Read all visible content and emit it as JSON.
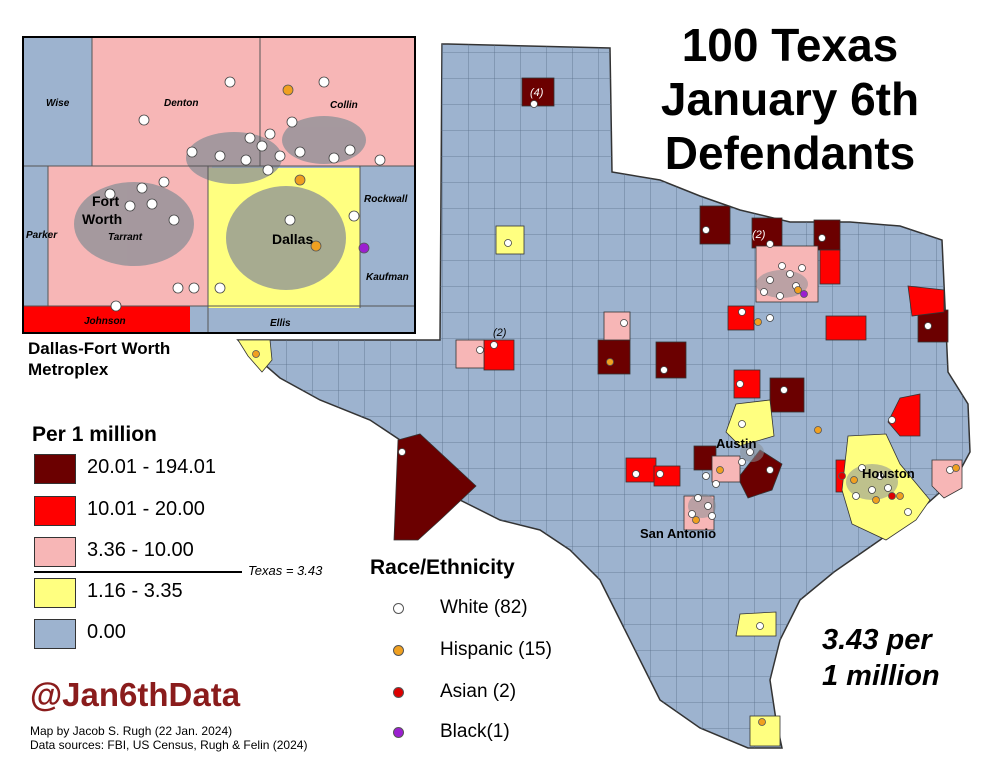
{
  "title": {
    "line1": "100 Texas",
    "line2": "January 6th",
    "line3": "Defendants"
  },
  "rate": {
    "line1": "3.43 per",
    "line2": "1 million"
  },
  "inset": {
    "caption_line1": "Dallas-Fort Worth",
    "caption_line2": "Metroplex",
    "counties": [
      "Wise",
      "Denton",
      "Collin",
      "Rockwall",
      "Parker",
      "Tarrant",
      "Kaufman",
      "Johnson",
      "Ellis"
    ],
    "cities": [
      "Fort",
      "Worth",
      "Dallas"
    ]
  },
  "map_labels": {
    "cities": [
      "Austin",
      "Houston",
      "San Antonio"
    ],
    "counts": [
      "(4)",
      "(2)",
      "(2)"
    ]
  },
  "legend": {
    "title": "Per 1 million",
    "classes": [
      {
        "label": "20.01 - 194.01",
        "color": "#6b0000"
      },
      {
        "label": "10.01 - 20.00",
        "color": "#ff0000"
      },
      {
        "label": "3.36 - 10.00",
        "color": "#f7b6b6"
      },
      {
        "label": "1.16 - 3.35",
        "color": "#ffff80"
      },
      {
        "label": "0.00",
        "color": "#9db3cf"
      }
    ],
    "state_rate_note": "Texas = 3.43"
  },
  "race": {
    "title": "Race/Ethnicity",
    "groups": [
      {
        "label": "White (82)",
        "color": "#ffffff"
      },
      {
        "label": "Hispanic (15)",
        "color": "#f0a020"
      },
      {
        "label": "Asian (2)",
        "color": "#dd0000"
      },
      {
        "label": "Black(1)",
        "color": "#9b1fd0"
      }
    ]
  },
  "handle": "@Jan6thData",
  "credit": {
    "line1": "Map by Jacob S. Rugh (22 Jan. 2024)",
    "line2": "Data sources: FBI, US Census, Rugh & Felin (2024)"
  },
  "colors": {
    "county_border": "#5a6f8a",
    "urban_gray": "#8a8f96",
    "handle": "#8a1c1c"
  }
}
